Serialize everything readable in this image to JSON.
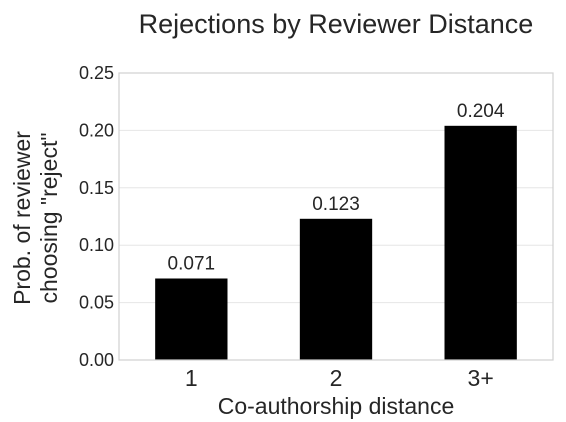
{
  "chart_data": {
    "type": "bar",
    "title": "Rejections by Reviewer Distance",
    "xlabel": "Co-authorship distance",
    "ylabel_lines": [
      "Prob. of reviewer",
      "choosing \"reject\""
    ],
    "categories": [
      "1",
      "2",
      "3+"
    ],
    "values": [
      0.071,
      0.123,
      0.204
    ],
    "data_labels": [
      "0.071",
      "0.123",
      "0.204"
    ],
    "ylim": [
      0,
      0.25
    ],
    "yticks": [
      0.0,
      0.05,
      0.1,
      0.15,
      0.2,
      0.25
    ],
    "ytick_labels": [
      "0.00",
      "0.05",
      "0.10",
      "0.15",
      "0.20",
      "0.25"
    ],
    "grid": true,
    "bar_color": "#000000",
    "grid_color": "#e6e6e6"
  }
}
